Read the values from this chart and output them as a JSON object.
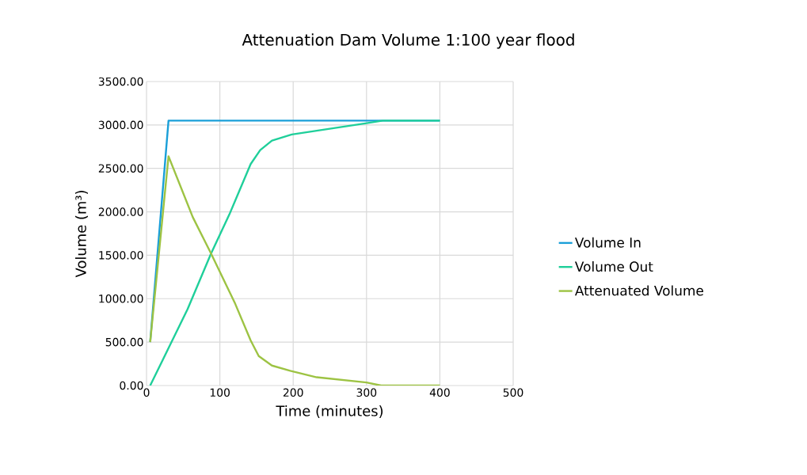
{
  "chart_data": {
    "type": "line",
    "title": "Attenuation Dam Volume 1:100 year flood",
    "xlabel": "Time (minutes)",
    "ylabel": "Volume (m³)",
    "xlim": [
      0,
      500
    ],
    "ylim": [
      0,
      3500
    ],
    "xticks": [
      0,
      100,
      200,
      300,
      400,
      500
    ],
    "yticks": [
      {
        "value": 0,
        "label": "0.00"
      },
      {
        "value": 500,
        "label": "500.00"
      },
      {
        "value": 1000,
        "label": "1000.00"
      },
      {
        "value": 1500,
        "label": "1500.00"
      },
      {
        "value": 2000,
        "label": "2000.00"
      },
      {
        "value": 2500,
        "label": "2500.00"
      },
      {
        "value": 3000,
        "label": "3000.00"
      },
      {
        "value": 3500,
        "label": "3500.00"
      }
    ],
    "grid": true,
    "legend": "right",
    "marker": "none",
    "line_style": "solid",
    "series": [
      {
        "name": "Volume In",
        "color": "#1a9fd8",
        "x": [
          5,
          30,
          400
        ],
        "values": [
          500,
          3050,
          3050
        ]
      },
      {
        "name": "Volume Out",
        "color": "#1fcf9a",
        "x": [
          5,
          23,
          56,
          88,
          113,
          142,
          155,
          171,
          198,
          300,
          322,
          400
        ],
        "values": [
          0,
          310,
          880,
          1520,
          1970,
          2550,
          2710,
          2820,
          2890,
          3020,
          3050,
          3050
        ]
      },
      {
        "name": "Attenuated Volume",
        "color": "#9dc343",
        "x": [
          5,
          30,
          63,
          88,
          121,
          142,
          153,
          171,
          196,
          232,
          300,
          320,
          400
        ],
        "values": [
          500,
          2640,
          1940,
          1520,
          940,
          520,
          340,
          230,
          170,
          95,
          35,
          0,
          0
        ]
      }
    ]
  }
}
